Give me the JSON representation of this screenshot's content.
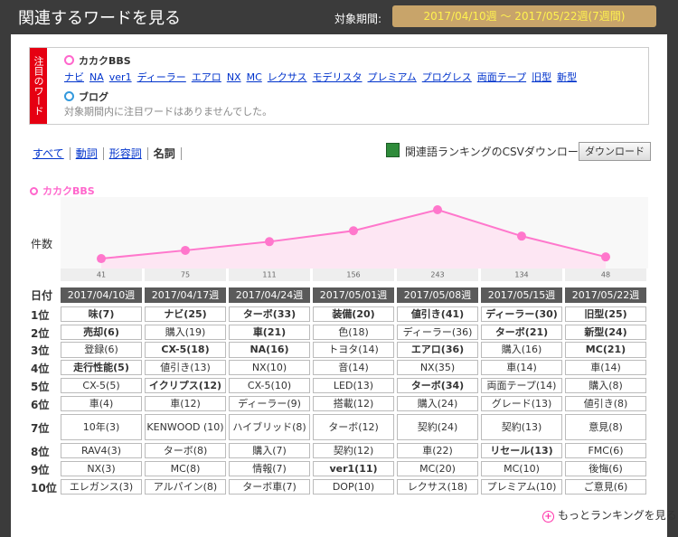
{
  "header": {
    "title": "関連するワードを見る",
    "period_label": "対象期間:",
    "period": "2017/04/10週 ～ 2017/05/22週(7週間)"
  },
  "notice": {
    "label": "注目のワード",
    "sources": [
      {
        "name": "カカクBBS",
        "color": "#ff66cc",
        "words": [
          "ナビ",
          "NA",
          "ver1",
          "ディーラー",
          "エアロ",
          "NX",
          "MC",
          "レクサス",
          "モデリスタ",
          "プレミアム",
          "プログレス",
          "両面テープ",
          "旧型",
          "新型"
        ]
      },
      {
        "name": "ブログ",
        "color": "#3399dd",
        "message": "対象期間内に注目ワードはありませんでした。"
      }
    ]
  },
  "tabs": {
    "items": [
      "すべて",
      "動詞",
      "形容詞",
      "名詞"
    ],
    "selected": 3
  },
  "csv": {
    "text": "関連語ランキングのCSVダウンロード",
    "button": "ダウンロード"
  },
  "chart_data": {
    "type": "line",
    "title": "カカクBBS",
    "y_label": "件数",
    "color": "#ff77cc",
    "categories": [
      "2017/04/10週",
      "2017/04/17週",
      "2017/04/24週",
      "2017/05/01週",
      "2017/05/08週",
      "2017/05/15週",
      "2017/05/22週"
    ],
    "values": [
      41,
      75,
      111,
      156,
      243,
      134,
      48
    ]
  },
  "table": {
    "header": "日付",
    "rows": [
      {
        "rank": "1位",
        "cells": [
          "味(7)",
          "ナビ(25)",
          "ターボ(33)",
          "装備(20)",
          "値引き(41)",
          "ディーラー(30)",
          "旧型(25)"
        ],
        "bold": [
          0,
          1,
          2,
          3,
          4,
          5,
          6
        ]
      },
      {
        "rank": "2位",
        "cells": [
          "売却(6)",
          "購入(19)",
          "車(21)",
          "色(18)",
          "ディーラー(36)",
          "ターボ(21)",
          "新型(24)"
        ],
        "bold": [
          0,
          2,
          5,
          6
        ]
      },
      {
        "rank": "3位",
        "cells": [
          "登録(6)",
          "CX-5(18)",
          "NA(16)",
          "トヨタ(14)",
          "エアロ(36)",
          "購入(16)",
          "MC(21)"
        ],
        "bold": [
          1,
          2,
          4,
          6
        ]
      },
      {
        "rank": "4位",
        "cells": [
          "走行性能(5)",
          "値引き(13)",
          "NX(10)",
          "音(14)",
          "NX(35)",
          "車(14)",
          "車(14)"
        ],
        "bold": [
          0
        ]
      },
      {
        "rank": "5位",
        "cells": [
          "CX-5(5)",
          "イクリプス(12)",
          "CX-5(10)",
          "LED(13)",
          "ターボ(34)",
          "両面テープ(14)",
          "購入(8)"
        ],
        "bold": [
          1,
          4
        ]
      },
      {
        "rank": "6位",
        "cells": [
          "車(4)",
          "車(12)",
          "ディーラー(9)",
          "搭載(12)",
          "購入(24)",
          "グレード(13)",
          "値引き(8)"
        ],
        "bold": []
      },
      {
        "rank": "7位",
        "cells": [
          "10年(3)",
          "KENWOOD (10)",
          "ハイブリッド(8)",
          "ターボ(12)",
          "契約(24)",
          "契約(13)",
          "意見(8)"
        ],
        "bold": []
      },
      {
        "rank": "8位",
        "cells": [
          "RAV4(3)",
          "ターボ(8)",
          "購入(7)",
          "契約(12)",
          "車(22)",
          "リセール(13)",
          "FMC(6)"
        ],
        "bold": [
          5
        ]
      },
      {
        "rank": "9位",
        "cells": [
          "NX(3)",
          "MC(8)",
          "情報(7)",
          "ver1(11)",
          "MC(20)",
          "MC(10)",
          "後悔(6)"
        ],
        "bold": [
          3
        ]
      },
      {
        "rank": "10位",
        "cells": [
          "エレガンス(3)",
          "アルパイン(8)",
          "ターボ車(7)",
          "DOP(10)",
          "レクサス(18)",
          "プレミアム(10)",
          "ご意見(6)"
        ],
        "bold": []
      }
    ]
  },
  "footer_link": "もっとランキングを見る"
}
